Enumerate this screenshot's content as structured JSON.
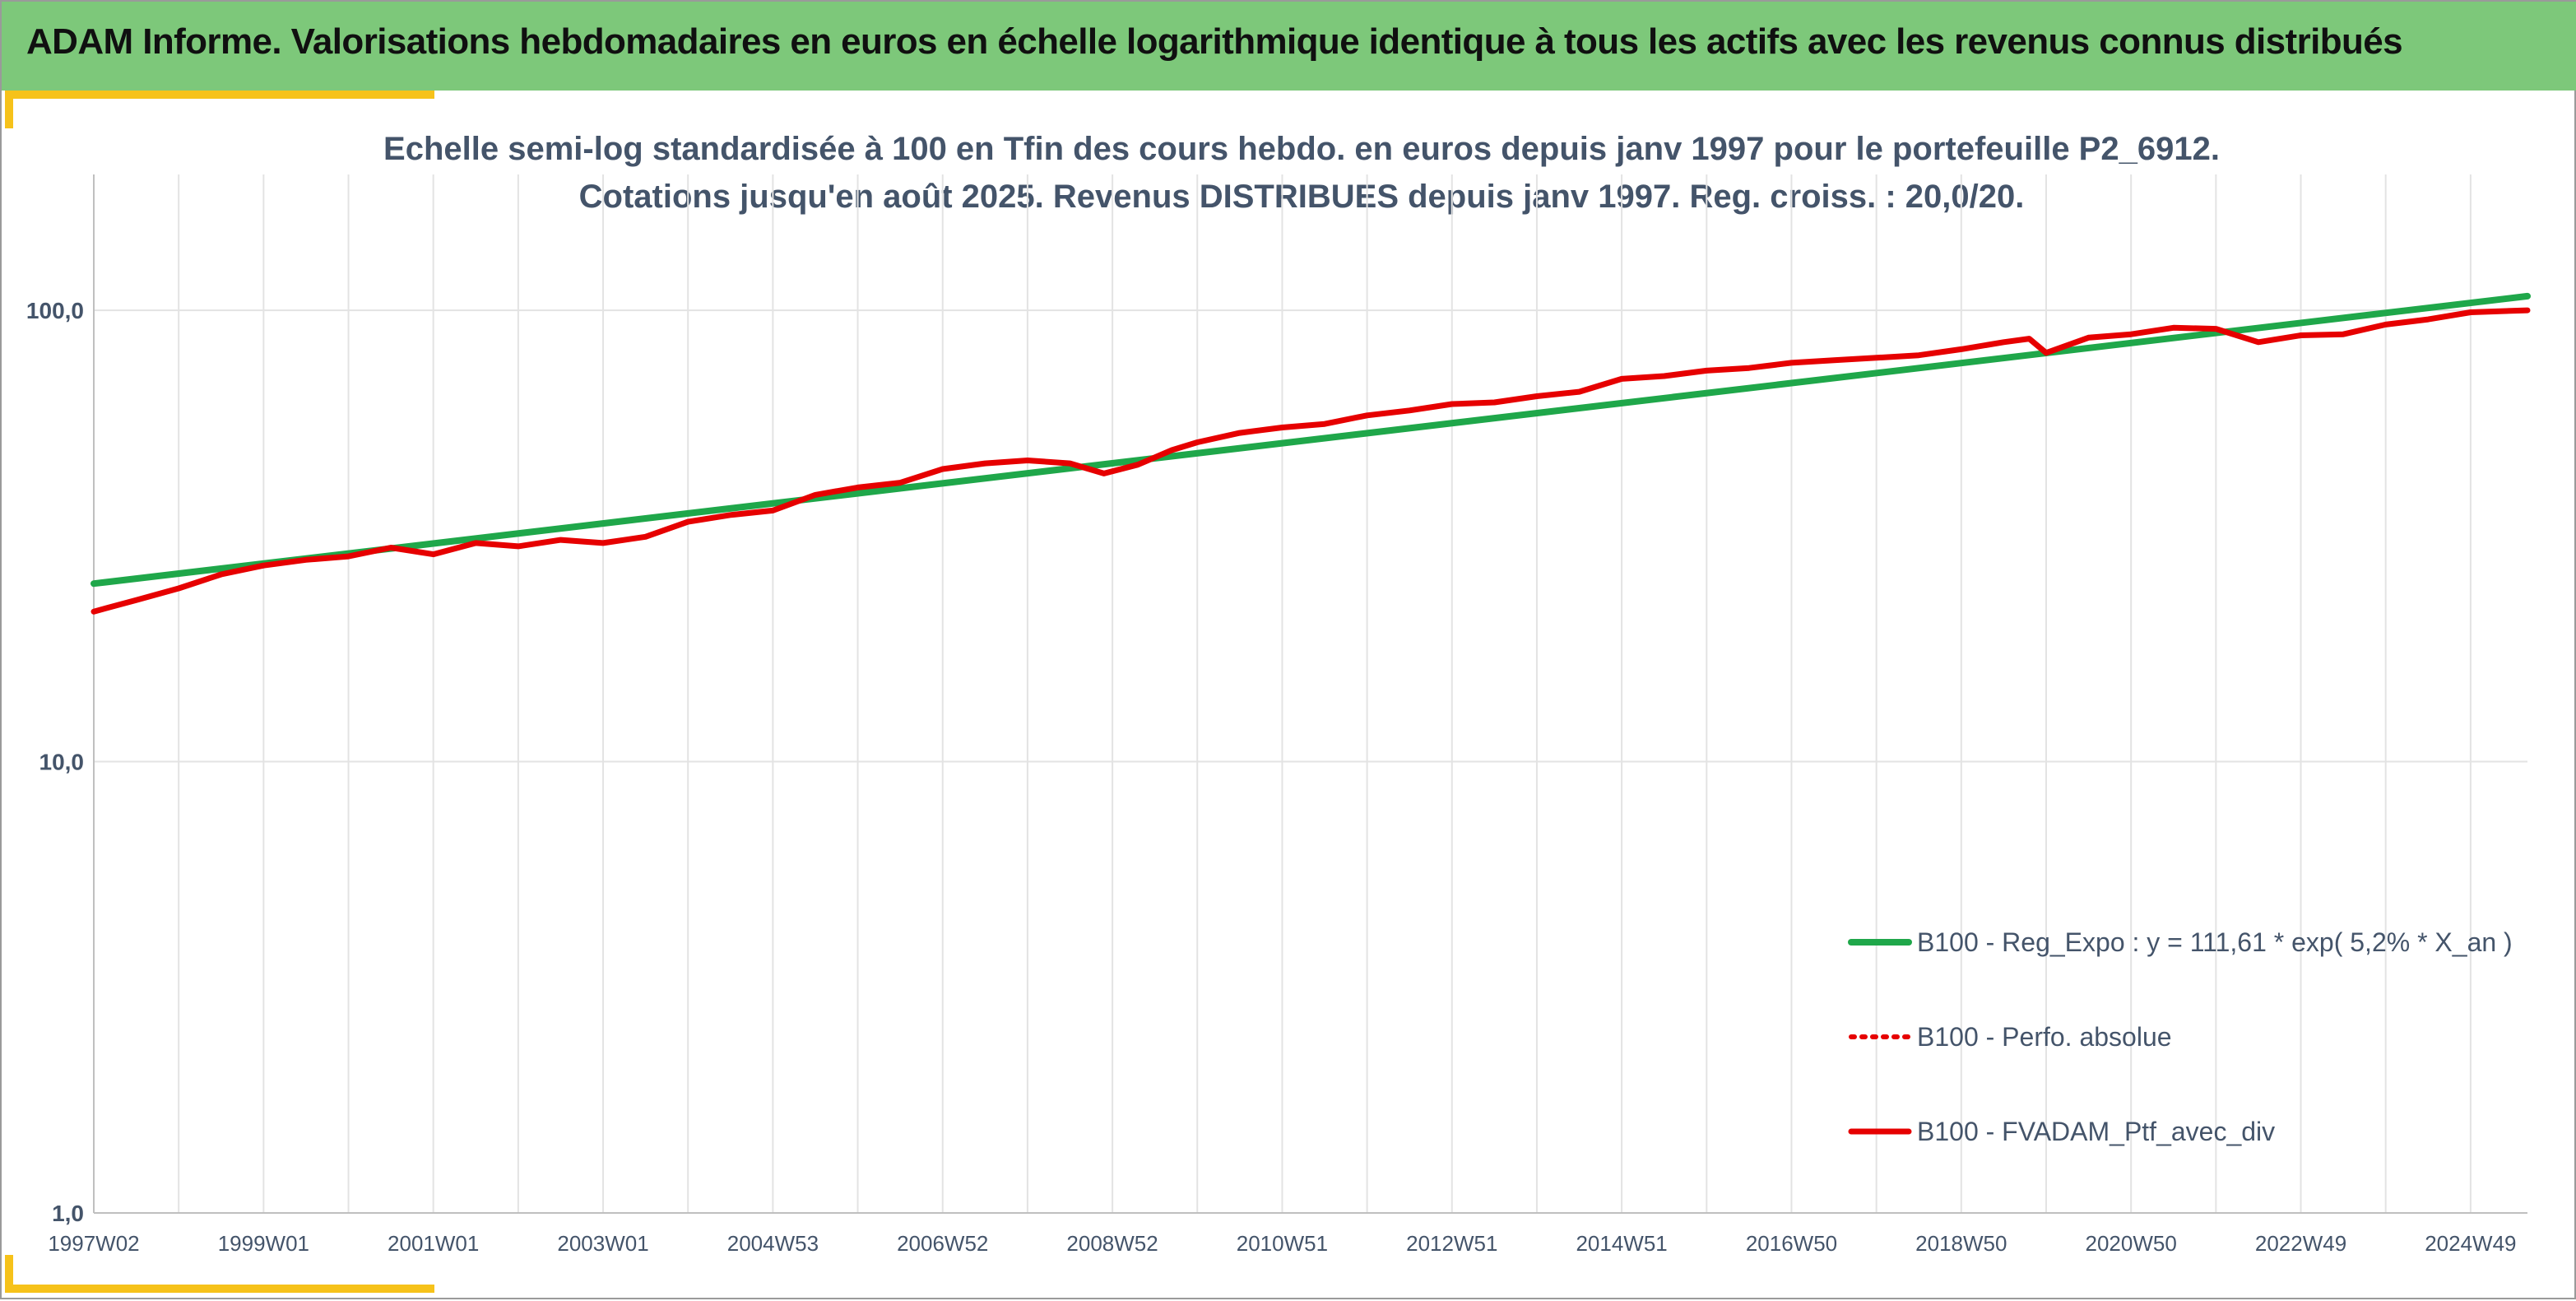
{
  "header": {
    "title": "ADAM Informe. Valorisations hebdomadaires en euros en échelle logarithmique identique à tous les actifs avec les revenus connus distribués"
  },
  "colors": {
    "header_bg": "#7dc87a",
    "accent_corner": "#f6c21a",
    "regression": "#1fa74a",
    "portfolio": "#e60000",
    "text": "#44546a",
    "grid": "#e3e3e3"
  },
  "chart_data": {
    "type": "line",
    "title_lines": [
      "Echelle semi-log standardisée à 100 en Tfin des cours hebdo. en euros depuis janv 1997 pour le portefeuille P2_6912.",
      "Cotations jusqu'en août 2025. Revenus DISTRIBUES depuis janv 1997. Reg. croiss. : 20,0/20."
    ],
    "y_scale": "log",
    "ylim": [
      1,
      200
    ],
    "y_ticks": [
      1,
      10,
      100
    ],
    "y_tick_labels": [
      "1,0",
      "10,0",
      "100,0"
    ],
    "x_range": [
      1997.0,
      2025.67
    ],
    "x_tick_labels": [
      "1997W02",
      "1999W01",
      "2001W01",
      "2003W01",
      "2004W53",
      "2006W52",
      "2008W52",
      "2010W51",
      "2012W51",
      "2014W51",
      "2016W50",
      "2018W50",
      "2020W50",
      "2022W49",
      "2024W49"
    ],
    "x_ticks": [
      1997.0,
      1999.0,
      2001.0,
      2003.0,
      2005.0,
      2007.0,
      2009.0,
      2011.0,
      2013.0,
      2015.0,
      2017.0,
      2019.0,
      2021.0,
      2023.0,
      2025.0
    ],
    "grid": true,
    "legend_position": "bottom-right",
    "series": [
      {
        "name": "B100 - Reg_Expo : y = 111,61 * exp( 5,2% *  X_an )",
        "style": "solid-green",
        "x": [
          1997.0,
          2025.67
        ],
        "y": [
          24.8,
          107.5
        ]
      },
      {
        "name": "B100 - Perfo. absolue",
        "style": "dotted-red",
        "x": [],
        "y": []
      },
      {
        "name": "B100 - FVADAM_Ptf_avec_div",
        "style": "solid-red",
        "x": [
          1997.0,
          1997.5,
          1998.0,
          1998.5,
          1999.0,
          1999.5,
          2000.0,
          2000.5,
          2001.0,
          2001.5,
          2002.0,
          2002.5,
          2003.0,
          2003.5,
          2004.0,
          2004.5,
          2005.0,
          2005.5,
          2006.0,
          2006.5,
          2007.0,
          2007.5,
          2008.0,
          2008.5,
          2008.9,
          2009.3,
          2009.7,
          2010.0,
          2010.5,
          2011.0,
          2011.5,
          2012.0,
          2012.5,
          2013.0,
          2013.5,
          2014.0,
          2014.5,
          2015.0,
          2015.5,
          2016.0,
          2016.5,
          2017.0,
          2017.5,
          2018.0,
          2018.5,
          2019.0,
          2019.5,
          2019.8,
          2020.0,
          2020.5,
          2021.0,
          2021.5,
          2022.0,
          2022.5,
          2023.0,
          2023.5,
          2024.0,
          2024.5,
          2025.0,
          2025.67
        ],
        "y": [
          21.5,
          22.8,
          24.2,
          26.0,
          27.2,
          28.0,
          28.5,
          29.8,
          28.8,
          30.5,
          30.0,
          31.0,
          30.5,
          31.5,
          34.0,
          35.2,
          36.0,
          39.0,
          40.5,
          41.5,
          44.5,
          45.8,
          46.5,
          45.8,
          43.5,
          45.5,
          49.0,
          51.0,
          53.5,
          55.0,
          56.0,
          58.5,
          60.0,
          62.0,
          62.5,
          64.5,
          66.0,
          70.5,
          71.5,
          73.5,
          74.5,
          76.5,
          77.5,
          78.5,
          79.5,
          82.0,
          85.0,
          86.5,
          80.5,
          87.0,
          88.5,
          91.5,
          91.0,
          85.0,
          88.0,
          88.5,
          93.0,
          95.5,
          99.0,
          100.0
        ]
      }
    ]
  }
}
